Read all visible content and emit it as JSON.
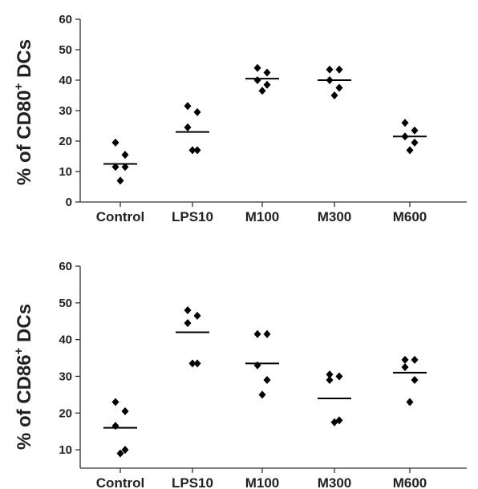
{
  "chart_data": [
    {
      "type": "scatter",
      "subtype": "dot-plot-with-mean",
      "ylabel_prefix": "% of CD80",
      "ylabel_sup": "+",
      "ylabel_suffix": " DCs",
      "ylim": [
        0,
        60
      ],
      "yticks": [
        0,
        10,
        20,
        30,
        40,
        50,
        60
      ],
      "categories": [
        "Control",
        "LPS10",
        "M100",
        "M300",
        "M600"
      ],
      "points": [
        [
          19.5,
          15.5,
          11.5,
          11.5,
          7.0
        ],
        [
          31.5,
          29.5,
          24.5,
          17.0,
          17.0
        ],
        [
          44.0,
          42.5,
          40.0,
          38.5,
          36.5
        ],
        [
          43.5,
          43.5,
          40.0,
          37.5,
          35.0
        ],
        [
          26.0,
          23.5,
          21.5,
          19.5,
          17.0
        ]
      ],
      "means": [
        12.5,
        23.0,
        40.5,
        40.0,
        21.5
      ],
      "marker_color": "#000000"
    },
    {
      "type": "scatter",
      "subtype": "dot-plot-with-mean",
      "ylabel_prefix": "% of CD86",
      "ylabel_sup": "+",
      "ylabel_suffix": " DCs",
      "ylim": [
        5,
        60
      ],
      "yticks": [
        10,
        20,
        30,
        40,
        50,
        60
      ],
      "categories": [
        "Control",
        "LPS10",
        "M100",
        "M300",
        "M600"
      ],
      "points": [
        [
          23.0,
          20.5,
          16.5,
          10.0,
          9.0
        ],
        [
          48.0,
          46.5,
          44.5,
          33.5,
          33.5
        ],
        [
          41.5,
          41.5,
          33.0,
          29.0,
          25.0
        ],
        [
          30.5,
          30.0,
          29.0,
          18.0,
          17.5
        ],
        [
          34.5,
          34.5,
          32.5,
          29.0,
          23.0
        ]
      ],
      "means": [
        16.0,
        42.0,
        33.5,
        24.0,
        31.0
      ],
      "marker_color": "#000000"
    }
  ]
}
